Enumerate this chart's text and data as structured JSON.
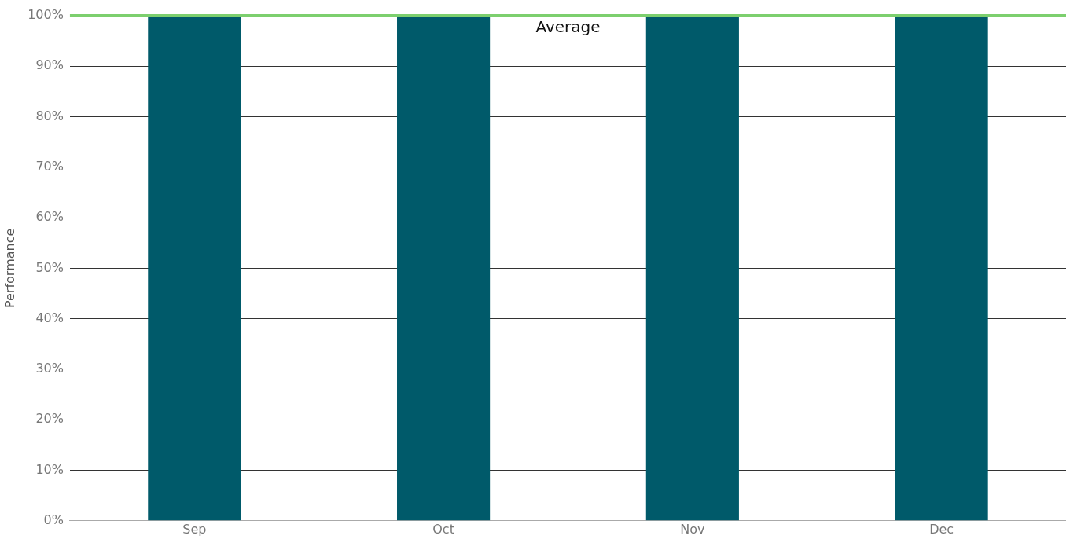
{
  "chart_data": {
    "type": "bar",
    "ylabel": "Performance",
    "categories": [
      "Sep",
      "Oct",
      "Nov",
      "Dec"
    ],
    "values": [
      100,
      100,
      100,
      100
    ],
    "color": "#005a6a",
    "ylim": [
      0,
      100
    ],
    "yticks": [
      {
        "value": 0,
        "label": "0%"
      },
      {
        "value": 10,
        "label": "10%"
      },
      {
        "value": 20,
        "label": "20%"
      },
      {
        "value": 30,
        "label": "30%"
      },
      {
        "value": 40,
        "label": "40%"
      },
      {
        "value": 50,
        "label": "50%"
      },
      {
        "value": 60,
        "label": "60%"
      },
      {
        "value": 70,
        "label": "70%"
      },
      {
        "value": 80,
        "label": "80%"
      },
      {
        "value": 90,
        "label": "90%"
      },
      {
        "value": 100,
        "label": "100%"
      }
    ],
    "grid": "y",
    "legend": false,
    "ref_lines": [
      {
        "axis": "y",
        "value": 100,
        "label": "Average",
        "color": "#7ccf6e"
      }
    ]
  }
}
